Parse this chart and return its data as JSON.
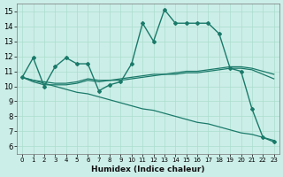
{
  "background_color": "#cceee8",
  "grid_color": "#aaddcc",
  "line_color": "#1a7a6a",
  "xlabel": "Humidex (Indice chaleur)",
  "xlim": [
    -0.5,
    23.5
  ],
  "ylim": [
    5.5,
    15.5
  ],
  "yticks": [
    6,
    7,
    8,
    9,
    10,
    11,
    12,
    13,
    14,
    15
  ],
  "xticks": [
    0,
    1,
    2,
    3,
    4,
    5,
    6,
    7,
    8,
    9,
    10,
    11,
    12,
    13,
    14,
    15,
    16,
    17,
    18,
    19,
    20,
    21,
    22,
    23
  ],
  "series": [
    {
      "x": [
        0,
        1,
        2,
        3,
        4,
        5,
        6,
        7,
        8,
        9,
        10,
        11,
        12,
        13,
        14,
        15,
        16,
        17,
        18,
        19,
        20,
        21,
        22,
        23
      ],
      "y": [
        10.6,
        11.9,
        10.0,
        11.3,
        11.9,
        11.5,
        11.5,
        9.7,
        10.1,
        10.3,
        11.5,
        14.2,
        13.0,
        15.1,
        14.2,
        14.2,
        14.2,
        14.2,
        13.5,
        11.2,
        11.0,
        8.5,
        6.6,
        6.3
      ],
      "marker": "D",
      "markersize": 2.0,
      "linewidth": 1.0
    },
    {
      "x": [
        0,
        1,
        2,
        3,
        4,
        5,
        6,
        7,
        8,
        9,
        10,
        11,
        12,
        13,
        14,
        15,
        16,
        17,
        18,
        19,
        20,
        21,
        22,
        23
      ],
      "y": [
        10.6,
        10.4,
        10.3,
        10.2,
        10.2,
        10.3,
        10.5,
        10.4,
        10.4,
        10.5,
        10.6,
        10.7,
        10.8,
        10.8,
        10.9,
        11.0,
        11.0,
        11.1,
        11.2,
        11.3,
        11.3,
        11.2,
        11.0,
        10.8
      ],
      "marker": null,
      "markersize": 0,
      "linewidth": 0.9
    },
    {
      "x": [
        0,
        1,
        2,
        3,
        4,
        5,
        6,
        7,
        8,
        9,
        10,
        11,
        12,
        13,
        14,
        15,
        16,
        17,
        18,
        19,
        20,
        21,
        22,
        23
      ],
      "y": [
        10.6,
        10.3,
        10.1,
        10.1,
        10.1,
        10.2,
        10.4,
        10.3,
        10.4,
        10.4,
        10.5,
        10.6,
        10.7,
        10.8,
        10.8,
        10.9,
        10.9,
        11.0,
        11.1,
        11.2,
        11.2,
        11.1,
        10.8,
        10.5
      ],
      "marker": null,
      "markersize": 0,
      "linewidth": 0.9
    },
    {
      "x": [
        0,
        1,
        2,
        3,
        4,
        5,
        6,
        7,
        8,
        9,
        10,
        11,
        12,
        13,
        14,
        15,
        16,
        17,
        18,
        19,
        20,
        21,
        22,
        23
      ],
      "y": [
        10.6,
        10.4,
        10.2,
        10.0,
        9.8,
        9.6,
        9.5,
        9.3,
        9.1,
        8.9,
        8.7,
        8.5,
        8.4,
        8.2,
        8.0,
        7.8,
        7.6,
        7.5,
        7.3,
        7.1,
        6.9,
        6.8,
        6.6,
        6.4
      ],
      "marker": null,
      "markersize": 0,
      "linewidth": 0.9
    }
  ]
}
